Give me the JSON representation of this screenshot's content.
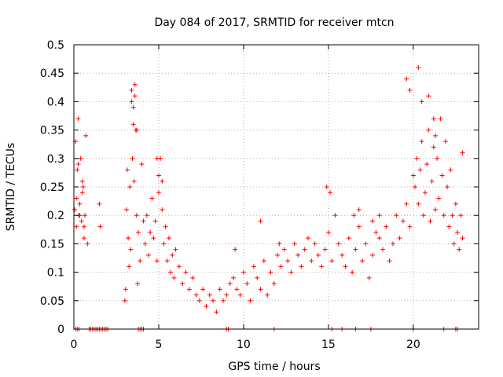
{
  "chart_data": {
    "type": "scatter",
    "title": "Day 084 of 2017, SRMTID for receiver mtcn",
    "xlabel": "GPS time / hours",
    "ylabel": "SRMTID / TECUs",
    "xlim": [
      0,
      23.85
    ],
    "ylim": [
      0,
      0.5
    ],
    "grid": true,
    "marker": "+",
    "color": "#ff0000",
    "x_ticks": [
      0,
      5,
      10,
      15,
      20
    ],
    "x_tick_labels": [
      "0",
      "5",
      "10",
      "15",
      "20"
    ],
    "y_ticks": [
      0,
      0.05,
      0.1,
      0.15,
      0.2,
      0.25,
      0.3,
      0.35,
      0.4,
      0.45,
      0.5
    ],
    "y_tick_labels": [
      "0",
      "0.05",
      "0.1",
      "0.15",
      "0.2",
      "0.25",
      "0.3",
      "0.35",
      "0.4",
      "0.45",
      "0.5"
    ],
    "series": [
      {
        "name": "SRMTID",
        "x": [
          0.05,
          0.1,
          0.15,
          0.2,
          0.25,
          0.3,
          0.35,
          0.4,
          0.45,
          0.5,
          0.55,
          0.6,
          0.65,
          0.7,
          0.15,
          0.25,
          0.35,
          0.5,
          0.6,
          0.8,
          1.5,
          1.55,
          3.0,
          3.05,
          3.1,
          3.15,
          3.2,
          3.25,
          3.3,
          3.35,
          3.4,
          3.45,
          3.5,
          3.55,
          3.6,
          3.65,
          3.7,
          3.75,
          3.8,
          3.9,
          4.0,
          4.1,
          4.2,
          4.3,
          4.4,
          4.5,
          4.6,
          4.7,
          4.8,
          4.9,
          5.0,
          5.1,
          5.2,
          5.3,
          5.4,
          5.5,
          5.6,
          5.7,
          5.8,
          5.9,
          6.0,
          6.2,
          6.4,
          6.6,
          6.8,
          7.0,
          7.2,
          7.4,
          7.6,
          7.8,
          8.0,
          8.2,
          8.4,
          8.6,
          8.8,
          9.0,
          9.2,
          9.4,
          9.6,
          9.8,
          10.0,
          10.2,
          10.4,
          10.6,
          10.8,
          11.0,
          11.2,
          11.4,
          11.6,
          11.8,
          12.0,
          12.2,
          12.4,
          12.6,
          12.8,
          13.0,
          13.2,
          13.4,
          13.6,
          13.8,
          14.0,
          14.2,
          14.4,
          14.6,
          14.8,
          15.0,
          15.2,
          15.4,
          15.6,
          15.8,
          16.0,
          16.2,
          16.4,
          16.6,
          16.8,
          17.0,
          17.2,
          17.4,
          17.6,
          17.8,
          18.0,
          18.2,
          18.4,
          18.6,
          18.8,
          19.0,
          19.2,
          19.4,
          19.6,
          19.8,
          20.0,
          20.1,
          20.2,
          20.3,
          20.4,
          20.5,
          20.6,
          20.7,
          20.8,
          20.9,
          21.0,
          21.1,
          21.2,
          21.3,
          21.4,
          21.5,
          21.6,
          21.7,
          21.8,
          21.9,
          22.0,
          22.1,
          22.2,
          22.3,
          22.4,
          22.5,
          22.6,
          22.7,
          22.8,
          22.9,
          3.4,
          3.5,
          3.6,
          3.7,
          4.9,
          5.0,
          5.2,
          9.5,
          11.0,
          12.1,
          14.9,
          15.1,
          16.5,
          16.8,
          17.6,
          18.0,
          19.6,
          19.8,
          20.3,
          20.5,
          20.9,
          21.2,
          21.3,
          22.9,
          0.1,
          0.2,
          0.3,
          0.9,
          1.0,
          1.1,
          1.2,
          1.3,
          1.4,
          1.5,
          1.6,
          1.7,
          1.8,
          1.9,
          2.0,
          3.8,
          3.9,
          4.0,
          4.1,
          9.0,
          9.1,
          11.8,
          15.2,
          15.8,
          16.6,
          17.5,
          20.0,
          21.8,
          22.5,
          22.6
        ],
        "y": [
          0.21,
          0.33,
          0.18,
          0.28,
          0.37,
          0.2,
          0.22,
          0.3,
          0.19,
          0.26,
          0.25,
          0.16,
          0.2,
          0.34,
          0.23,
          0.29,
          0.2,
          0.24,
          0.18,
          0.15,
          0.22,
          0.18,
          0.05,
          0.07,
          0.21,
          0.28,
          0.16,
          0.11,
          0.25,
          0.14,
          0.4,
          0.3,
          0.36,
          0.26,
          0.43,
          0.35,
          0.2,
          0.08,
          0.17,
          0.12,
          0.29,
          0.19,
          0.15,
          0.2,
          0.13,
          0.17,
          0.23,
          0.16,
          0.19,
          0.12,
          0.24,
          0.3,
          0.21,
          0.15,
          0.18,
          0.12,
          0.16,
          0.1,
          0.13,
          0.09,
          0.14,
          0.11,
          0.08,
          0.1,
          0.07,
          0.09,
          0.06,
          0.05,
          0.07,
          0.04,
          0.06,
          0.05,
          0.03,
          0.07,
          0.05,
          0.06,
          0.08,
          0.09,
          0.07,
          0.06,
          0.1,
          0.08,
          0.05,
          0.11,
          0.09,
          0.07,
          0.12,
          0.06,
          0.1,
          0.08,
          0.13,
          0.11,
          0.14,
          0.12,
          0.1,
          0.15,
          0.13,
          0.11,
          0.14,
          0.16,
          0.12,
          0.15,
          0.13,
          0.11,
          0.14,
          0.17,
          0.12,
          0.2,
          0.15,
          0.13,
          0.11,
          0.16,
          0.1,
          0.14,
          0.18,
          0.12,
          0.15,
          0.09,
          0.13,
          0.17,
          0.16,
          0.14,
          0.18,
          0.12,
          0.15,
          0.2,
          0.16,
          0.19,
          0.22,
          0.18,
          0.27,
          0.25,
          0.3,
          0.22,
          0.28,
          0.33,
          0.2,
          0.24,
          0.29,
          0.35,
          0.19,
          0.26,
          0.32,
          0.21,
          0.3,
          0.23,
          0.37,
          0.27,
          0.2,
          0.33,
          0.25,
          0.18,
          0.28,
          0.2,
          0.15,
          0.22,
          0.17,
          0.14,
          0.2,
          0.16,
          0.42,
          0.39,
          0.41,
          0.35,
          0.3,
          0.27,
          0.26,
          0.14,
          0.19,
          0.15,
          0.25,
          0.24,
          0.2,
          0.21,
          0.19,
          0.2,
          0.44,
          0.42,
          0.46,
          0.4,
          0.41,
          0.37,
          0.34,
          0.31,
          0,
          0,
          0,
          0,
          0,
          0,
          0,
          0,
          0,
          0,
          0,
          0,
          0,
          0,
          0,
          0,
          0,
          0,
          0,
          0,
          0,
          0,
          0,
          0,
          0,
          0,
          0,
          0,
          0,
          0
        ]
      }
    ]
  }
}
